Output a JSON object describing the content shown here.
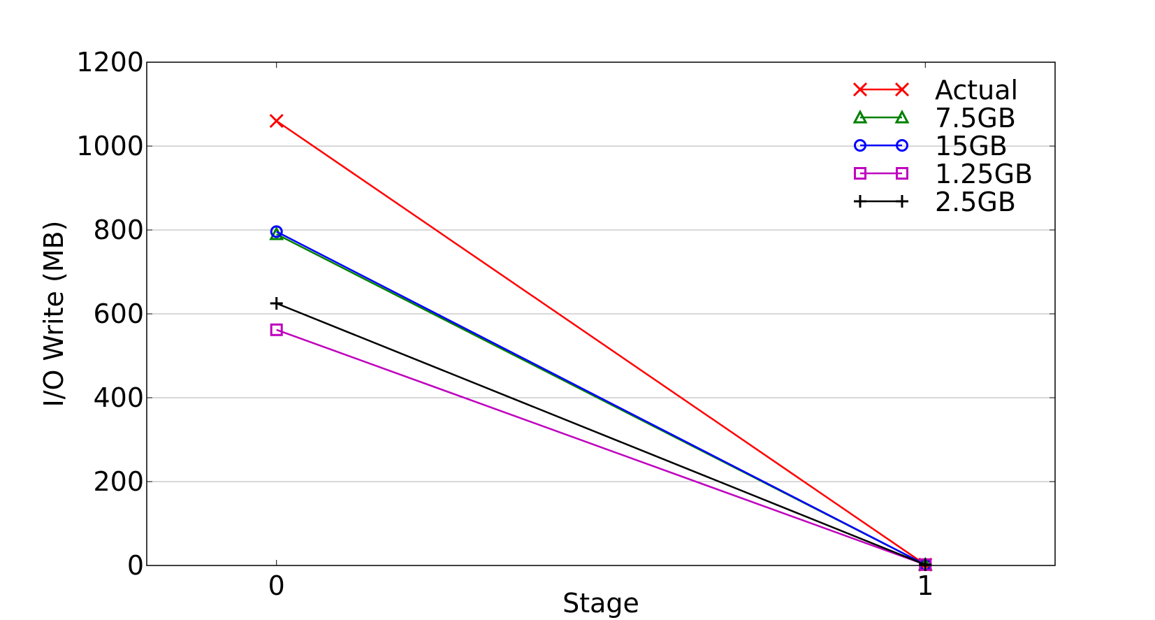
{
  "chart_data": {
    "type": "line",
    "title": "",
    "xlabel": "Stage",
    "ylabel": "I/O Write (MB)",
    "x": [
      0,
      1
    ],
    "x_ticks": [
      "0",
      "1"
    ],
    "xlim": [
      -0.2,
      1.2
    ],
    "ylim": [
      0,
      1200
    ],
    "y_ticks": [
      "0",
      "200",
      "400",
      "600",
      "800",
      "1000",
      "1200"
    ],
    "grid": "horizontal",
    "legend_position": "top-right",
    "series": [
      {
        "name": "Actual",
        "values": [
          1060,
          2
        ],
        "color": "#ff0000",
        "marker": "x"
      },
      {
        "name": "7.5GB",
        "values": [
          790,
          2
        ],
        "color": "#008000",
        "marker": "triangle"
      },
      {
        "name": "15GB",
        "values": [
          796,
          2
        ],
        "color": "#0000ff",
        "marker": "circle"
      },
      {
        "name": "1.25GB",
        "values": [
          562,
          2
        ],
        "color": "#bf00bf",
        "marker": "square"
      },
      {
        "name": "2.5GB",
        "values": [
          625,
          2
        ],
        "color": "#000000",
        "marker": "plus"
      }
    ]
  }
}
